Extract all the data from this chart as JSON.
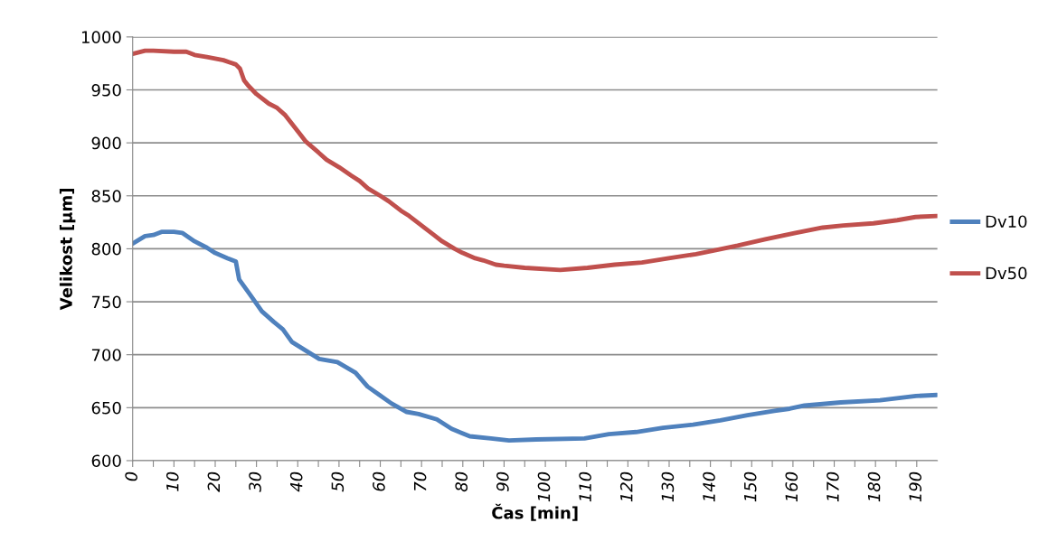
{
  "chart_data": {
    "type": "line",
    "xlabel": "Čas [min]",
    "ylabel": "Velikost [µm]",
    "xlim": [
      0,
      195
    ],
    "ylim": [
      600,
      1000
    ],
    "xticks": [
      0,
      {
        "value": 5,
        "label": null
      },
      10,
      {
        "value": 15,
        "label": null
      },
      20,
      {
        "value": 25,
        "label": null
      },
      30,
      {
        "value": 35,
        "label": null
      },
      40,
      {
        "value": 45,
        "label": null
      },
      50,
      {
        "value": 55,
        "label": null
      },
      60,
      {
        "value": 65,
        "label": null
      },
      70,
      {
        "value": 75,
        "label": null
      },
      80,
      {
        "value": 85,
        "label": null
      },
      90,
      {
        "value": 95,
        "label": null
      },
      100,
      {
        "value": 105,
        "label": null
      },
      110,
      {
        "value": 115,
        "label": null
      },
      120,
      {
        "value": 125,
        "label": null
      },
      130,
      {
        "value": 135,
        "label": null
      },
      140,
      {
        "value": 145,
        "label": null
      },
      150,
      {
        "value": 155,
        "label": null
      },
      160,
      {
        "value": 165,
        "label": null
      },
      170,
      {
        "value": 175,
        "label": null
      },
      180,
      {
        "value": 185,
        "label": null
      },
      190
    ],
    "yticks": [
      600,
      650,
      700,
      750,
      800,
      850,
      900,
      950,
      1000
    ],
    "grid": "y",
    "legend": "right",
    "marker": "none",
    "line_style": "solid",
    "series": [
      {
        "name": "Dv10",
        "color": "#4f81bd",
        "x": [
          0,
          3,
          5,
          7,
          10,
          12,
          15,
          18,
          20,
          23,
          25,
          25.8,
          28.4,
          31.3,
          34.2,
          36.4,
          38.6,
          41.5,
          45.2,
          49.6,
          54,
          56.9,
          59.8,
          62.7,
          66.4,
          69.3,
          73.7,
          77.3,
          81.7,
          86.8,
          91.2,
          97.8,
          109.5,
          115.4,
          122,
          128.5,
          135.8,
          142.4,
          149,
          155.5,
          159.2,
          162.8,
          171.6,
          181.1,
          189.8,
          194.9
        ],
        "values": [
          805,
          812,
          813,
          816,
          816,
          815,
          807,
          801,
          796,
          791,
          788,
          771,
          757,
          741,
          731,
          724,
          712,
          705,
          696,
          693,
          683,
          670,
          662,
          654,
          646,
          644,
          639,
          630,
          623,
          621,
          619,
          620,
          621,
          625,
          627,
          631,
          634,
          638,
          643,
          647,
          649,
          652,
          655,
          657,
          661,
          662
        ]
      },
      {
        "name": "Dv50",
        "color": "#c0504d",
        "x": [
          0,
          3,
          5,
          10,
          13,
          15,
          18,
          22,
          25,
          26,
          27,
          28,
          30,
          33,
          35,
          37,
          40,
          42,
          45,
          47,
          50,
          53,
          55,
          57,
          60,
          62,
          65,
          67,
          70,
          73,
          75,
          78,
          80,
          83,
          85,
          88,
          90,
          95,
          103.6,
          110.2,
          116.8,
          123.4,
          129.9,
          136.5,
          141.6,
          146.6,
          153.3,
          160.6,
          167.2,
          172.2,
          179.5,
          185.3,
          189.7,
          194.9
        ],
        "values": [
          984,
          987,
          987,
          986,
          986,
          983,
          981,
          978,
          974,
          970,
          959,
          954,
          946,
          937,
          933,
          926,
          911,
          901,
          891,
          884,
          877,
          869,
          864,
          857,
          850,
          845,
          836,
          831,
          822,
          813,
          807,
          800,
          796,
          791,
          789,
          785,
          784,
          782,
          780,
          782,
          785,
          787,
          791,
          795,
          799,
          803,
          809,
          815,
          820,
          822,
          824,
          827,
          830,
          831
        ]
      }
    ]
  }
}
